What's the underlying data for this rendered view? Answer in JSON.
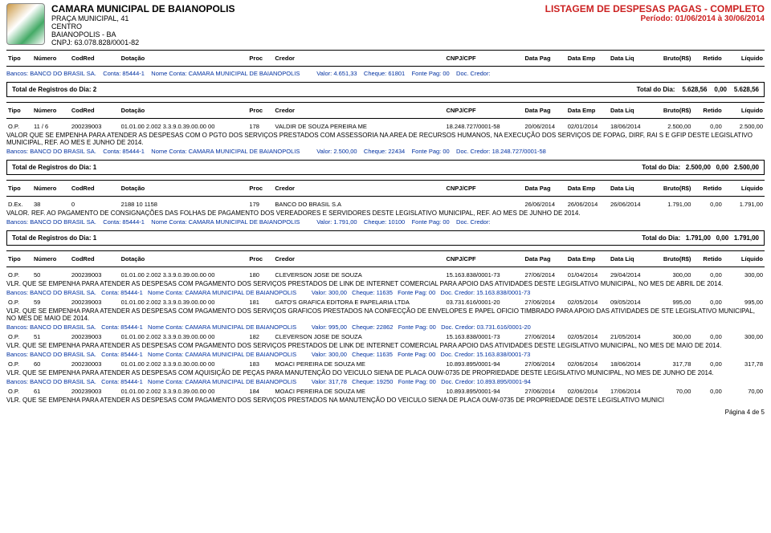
{
  "header": {
    "org_title": "CAMARA MUNICIPAL DE BAIANOPOLIS",
    "addr1": "PRAÇA MUNICIPAL, 41",
    "addr2": "CENTRO",
    "addr3": "BAIANOPOLIS - BA",
    "cnpj": "CNPJ: 63.078.828/0001-82",
    "right_title": "LISTAGEM DE DESPESAS PAGAS - COMPLETO",
    "right_period": "Período: 01/06/2014 à 30/06/2014"
  },
  "columns": {
    "tipo": "Tipo",
    "numero": "Número",
    "codred": "CodRed",
    "dotacao": "Dotação",
    "proc": "Proc",
    "credor": "Credor",
    "cnpj": "CNPJ/CPF",
    "datapag": "Data Pag",
    "dataemp": "Data Emp",
    "dataliq": "Data Liq",
    "bruto": "Bruto(R$)",
    "retido": "Retido",
    "liquido": "Líquido"
  },
  "bank_labels": {
    "bancos": "Bancos:",
    "conta": "Conta:",
    "nome_conta": "Nome Conta:",
    "valor": "Valor:",
    "cheque": "Cheque:",
    "fonte": "Fonte Pag:",
    "doc": "Doc. Credor:"
  },
  "bank_common": {
    "banco": "BANCO DO BRASIL SA.",
    "conta": "85444-1",
    "nome_conta": "CAMARA MUNICIPAL DE BAIANOPOLIS",
    "fonte": "00"
  },
  "top_bank": {
    "valor": "4.651,33",
    "cheque": "61801",
    "doc": ""
  },
  "totals1": {
    "left": "Total de Registros do Dia: 2",
    "label": "Total do Dia:",
    "v1": "5.628,56",
    "v2": "0,00",
    "v3": "5.628,56"
  },
  "sec2_row": {
    "tipo": "O.P.",
    "numero": "11 / 6",
    "codred": "200239003",
    "dotacao": "01.01.00 2.002 3.3.9.0.39.00.00 00",
    "proc": "178",
    "credor": "VALDIR DE SOUZA PEREIRA ME",
    "cnpj": "18.248.727/0001-58",
    "dp": "20/06/2014",
    "de": "02/01/2014",
    "dl": "18/06/2014",
    "bruto": "2.500,00",
    "ret": "0,00",
    "liq": "2.500,00"
  },
  "sec2_vlr": "VALOR QUE SE EMPENHA PARA ATENDER AS DESPESAS COM O PGTO DOS SERVIÇOS PRESTADOS COM ASSESSORIA NA AREA DE RECURSOS HUMANOS, NA EXECUÇÃO DOS SERVIÇOS DE FOPAG, DIRF, RAI S E GFIP DESTE LEGISLATIVO MUNICIPAL, REF. AO MES E JUNHO DE 2014.",
  "sec2_bank": {
    "valor": "2.500,00",
    "cheque": "22434",
    "doc": "18.248.727/0001-58"
  },
  "totals2": {
    "left": "Total de Registros do Dia: 1",
    "label": "Total do Dia:",
    "v1": "2.500,00",
    "v2": "0,00",
    "v3": "2.500,00"
  },
  "sec3_row": {
    "tipo": "D.Ex.",
    "numero": "38",
    "codred": "0",
    "dotacao": "2188 10 1158",
    "proc": "179",
    "credor": "BANCO DO BRASIL S.A",
    "cnpj": "",
    "dp": "26/06/2014",
    "de": "26/06/2014",
    "dl": "26/06/2014",
    "bruto": "1.791,00",
    "ret": "0,00",
    "liq": "1.791,00"
  },
  "sec3_vlr": "VALOR. REF. AO PAGAMENTO DE CONSIGNAÇÕES DAS FOLHAS DE PAGAMENTO DOS VEREADORES E SERVIDORES DESTE LEGISLATIVO MUNICIPAL, REF. AO MES DE JUNHO DE 2014.",
  "sec3_bank": {
    "valor": "1.791,00",
    "cheque": "10100",
    "doc": ""
  },
  "totals3": {
    "left": "Total de Registros do Dia: 1",
    "label": "Total do Dia:",
    "v1": "1.791,00",
    "v2": "0,00",
    "v3": "1.791,00"
  },
  "sec4": [
    {
      "row": {
        "tipo": "O.P.",
        "numero": "50",
        "codred": "200239003",
        "dotacao": "01.01.00 2.002 3.3.9.0.39.00.00 00",
        "proc": "180",
        "credor": "CLEVERSON JOSE DE SOUZA",
        "cnpj": "15.163.838/0001-73",
        "dp": "27/06/2014",
        "de": "01/04/2014",
        "dl": "29/04/2014",
        "bruto": "300,00",
        "ret": "0,00",
        "liq": "300,00"
      },
      "vlr": "VLR. QUE SE EMPENHA PARA ATENDER AS DESPESAS COM PAGAMENTO DOS SERVIÇOS PRESTADOS DE LINK DE INTERNET COMERCIAL PARA APOIO DAS ATIVIDADES DESTE LEGISLATIVO MUNICIPAL, NO MES DE ABRIL DE 2014.",
      "bank": {
        "valor": "300,00",
        "cheque": "11635",
        "doc": "15.163.838/0001-73"
      }
    },
    {
      "row": {
        "tipo": "O.P.",
        "numero": "59",
        "codred": "200239003",
        "dotacao": "01.01.00 2.002 3.3.9.0.39.00.00 00",
        "proc": "181",
        "credor": "GATO'S GRAFICA EDITORA E PAPELARIA LTDA",
        "cnpj": "03.731.616/0001-20",
        "dp": "27/06/2014",
        "de": "02/05/2014",
        "dl": "09/05/2014",
        "bruto": "995,00",
        "ret": "0,00",
        "liq": "995,00"
      },
      "vlr": "VLR. QUE SE EMPENHA PARA ATENDER AS DESPESAS COM PAGAMENTO DOS SERVIÇOS GRAFICOS PRESTADOS NA CONFECÇÃO DE ENVELOPES E PAPEL OFICIO TIMBRADO PARA APOIO DAS ATIVIDADES DE STE LEGISLATIVO MUNICIPAL, NO MES DE MAIO DE 2014.",
      "bank": {
        "valor": "995,00",
        "cheque": "22862",
        "doc": "03.731.616/0001-20"
      }
    },
    {
      "row": {
        "tipo": "O.P.",
        "numero": "51",
        "codred": "200239003",
        "dotacao": "01.01.00 2.002 3.3.9.0.39.00.00 00",
        "proc": "182",
        "credor": "CLEVERSON JOSE DE SOUZA",
        "cnpj": "15.163.838/0001-73",
        "dp": "27/06/2014",
        "de": "02/05/2014",
        "dl": "21/05/2014",
        "bruto": "300,00",
        "ret": "0,00",
        "liq": "300,00"
      },
      "vlr": "VLR. QUE SE EMPENHA PARA ATENDER AS DESPESAS COM PAGAMENTO DOS SERVIÇOS PRESTADOS DE LINK DE INTERNET COMERCIAL PARA APOIO DAS ATIVIDADES DESTE LEGISLATIVO MUNICIPAL, NO MES DE MAIO DE 2014.",
      "bank": {
        "valor": "300,00",
        "cheque": "11635",
        "doc": "15.163.838/0001-73"
      }
    },
    {
      "row": {
        "tipo": "O.P.",
        "numero": "60",
        "codred": "200230003",
        "dotacao": "01.01.00 2.002 3.3.9.0.30.00.00 00",
        "proc": "183",
        "credor": "MOACI PEREIRA DE SOUZA ME",
        "cnpj": "10.893.895/0001-94",
        "dp": "27/06/2014",
        "de": "02/06/2014",
        "dl": "18/06/2014",
        "bruto": "317,78",
        "ret": "0,00",
        "liq": "317,78"
      },
      "vlr": "VLR. QUE SE EMPENHA PARA ATENDER AS DESPESAS COM AQUISIÇÃO DE PEÇAS PARA MANUTENÇÃO DO VEICULO SIENA DE PLACA OUW-0735 DE PROPRIEDADE DESTE LEGISLATIVO MUNICIPAL, NO MES DE JUNHO DE 2014.",
      "bank": {
        "valor": "317,78",
        "cheque": "19250",
        "doc": "10.893.895/0001-94"
      }
    },
    {
      "row": {
        "tipo": "O.P.",
        "numero": "61",
        "codred": "200239003",
        "dotacao": "01.01.00 2.002 3.3.9.0.39.00.00 00",
        "proc": "184",
        "credor": "MOACI PEREIRA DE SOUZA ME",
        "cnpj": "10.893.895/0001-94",
        "dp": "27/06/2014",
        "de": "02/06/2014",
        "dl": "17/06/2014",
        "bruto": "70,00",
        "ret": "0,00",
        "liq": "70,00"
      },
      "vlr": "VLR. QUE SE EMPENHA PARA ATENDER AS DESPESAS COM PAGAMENTO DOS SERVIÇOS PRESTADOS NA MANUTENÇÃO DO VEICULO SIENA DE PLACA OUW-0735 DE PROPRIEDADE DESTE LEGISLATIVO MUNICI",
      "bank": null
    }
  ],
  "footer": "Página 4 de 5"
}
